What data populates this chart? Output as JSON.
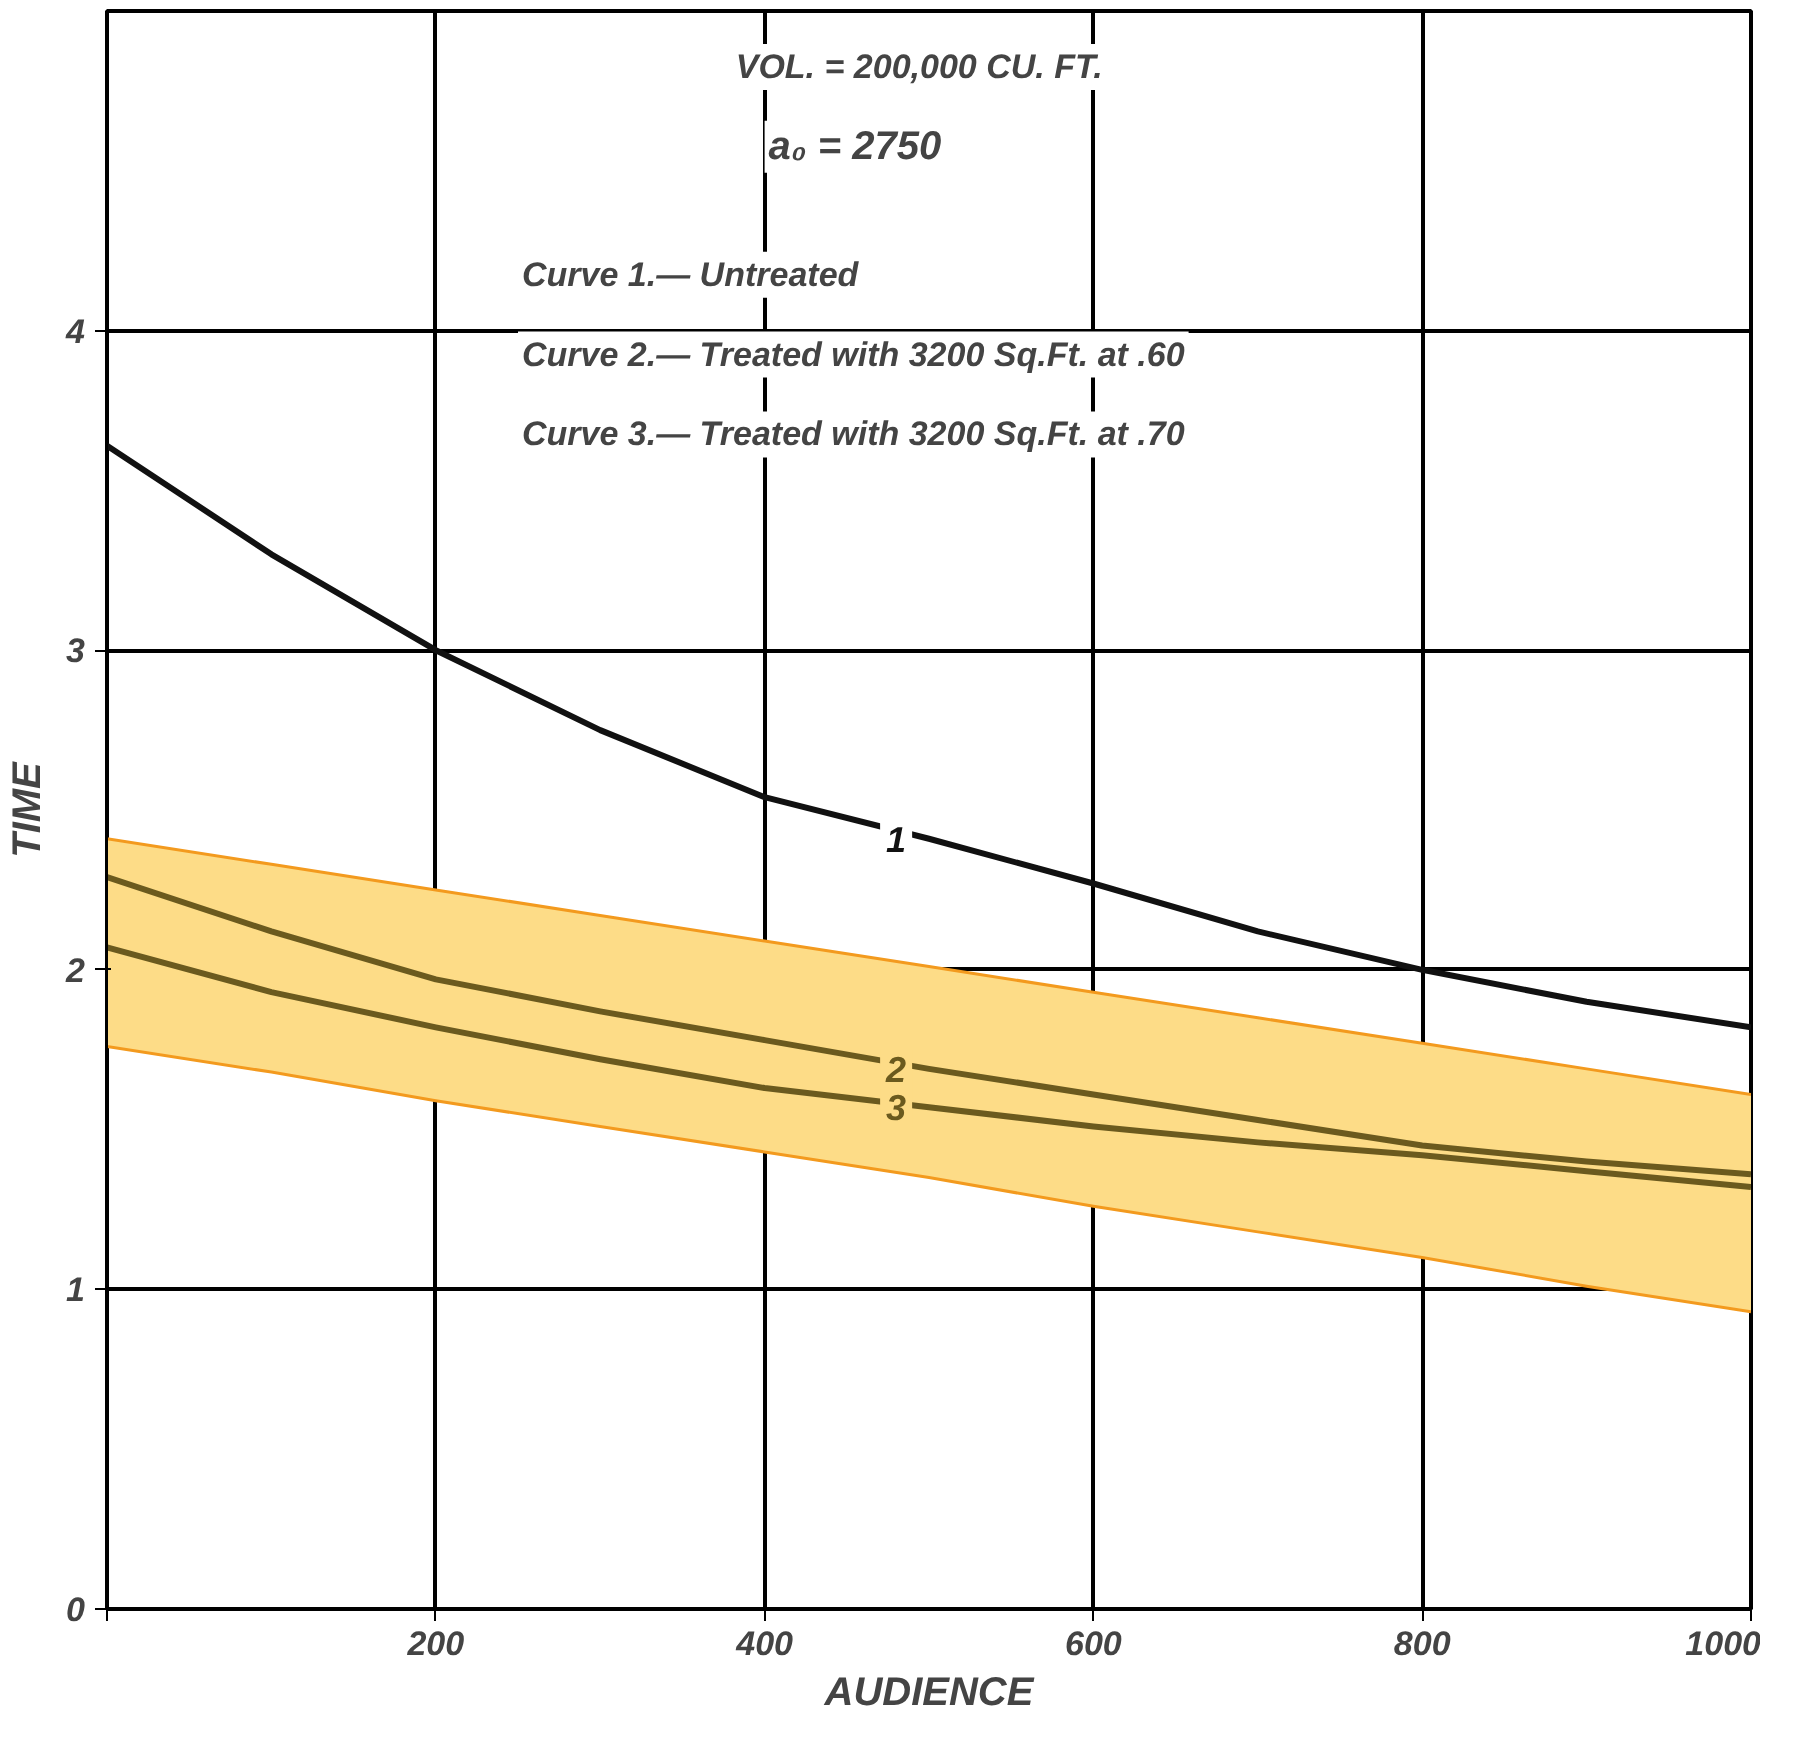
{
  "chart_data": {
    "type": "line",
    "xlabel": "AUDIENCE",
    "ylabel": "TIME",
    "annotations": [
      "VOL. = 200,000 CU. FT.",
      "a₀ = 2750",
      "Curve 1.— Untreated",
      "Curve 2.— Treated with 3200 Sq.Ft. at .60",
      "Curve 3.— Treated with 3200 Sq.Ft. at .70"
    ],
    "x": [
      0,
      100,
      200,
      300,
      400,
      500,
      600,
      700,
      800,
      900,
      1000
    ],
    "series": [
      {
        "type": "line",
        "color": "#f39a1e",
        "values": [
          1.76,
          1.68,
          1.59,
          1.51,
          1.43,
          1.35,
          1.26,
          1.18,
          1.1,
          1.01,
          0.93
        ]
      },
      {
        "type": "area",
        "color": "#fddc87",
        "values": [
          2.41,
          2.33,
          2.25,
          2.17,
          2.09,
          2.01,
          1.93,
          1.85,
          1.77,
          1.69,
          1.61
        ]
      },
      {
        "name": "1",
        "color": "#111111",
        "values": [
          3.64,
          3.3,
          3.0,
          2.75,
          2.54,
          2.41,
          2.27,
          2.12,
          2.0,
          1.9,
          1.82
        ]
      },
      {
        "name": "2",
        "color": "#6b5a1e",
        "values": [
          2.29,
          2.12,
          1.97,
          1.87,
          1.78,
          1.69,
          1.61,
          1.53,
          1.45,
          1.4,
          1.36
        ]
      },
      {
        "name": "3",
        "color": "#6b5a1e",
        "values": [
          2.07,
          1.93,
          1.82,
          1.72,
          1.63,
          1.57,
          1.51,
          1.46,
          1.42,
          1.37,
          1.32
        ]
      }
    ],
    "xlim": [
      0,
      1000
    ],
    "ylim": [
      0,
      5
    ],
    "xticks": [
      {
        "value": 0,
        "label": null
      },
      200,
      400,
      600,
      800,
      1000
    ],
    "yticks": [
      0,
      1,
      2,
      3,
      4
    ],
    "grid": true
  }
}
